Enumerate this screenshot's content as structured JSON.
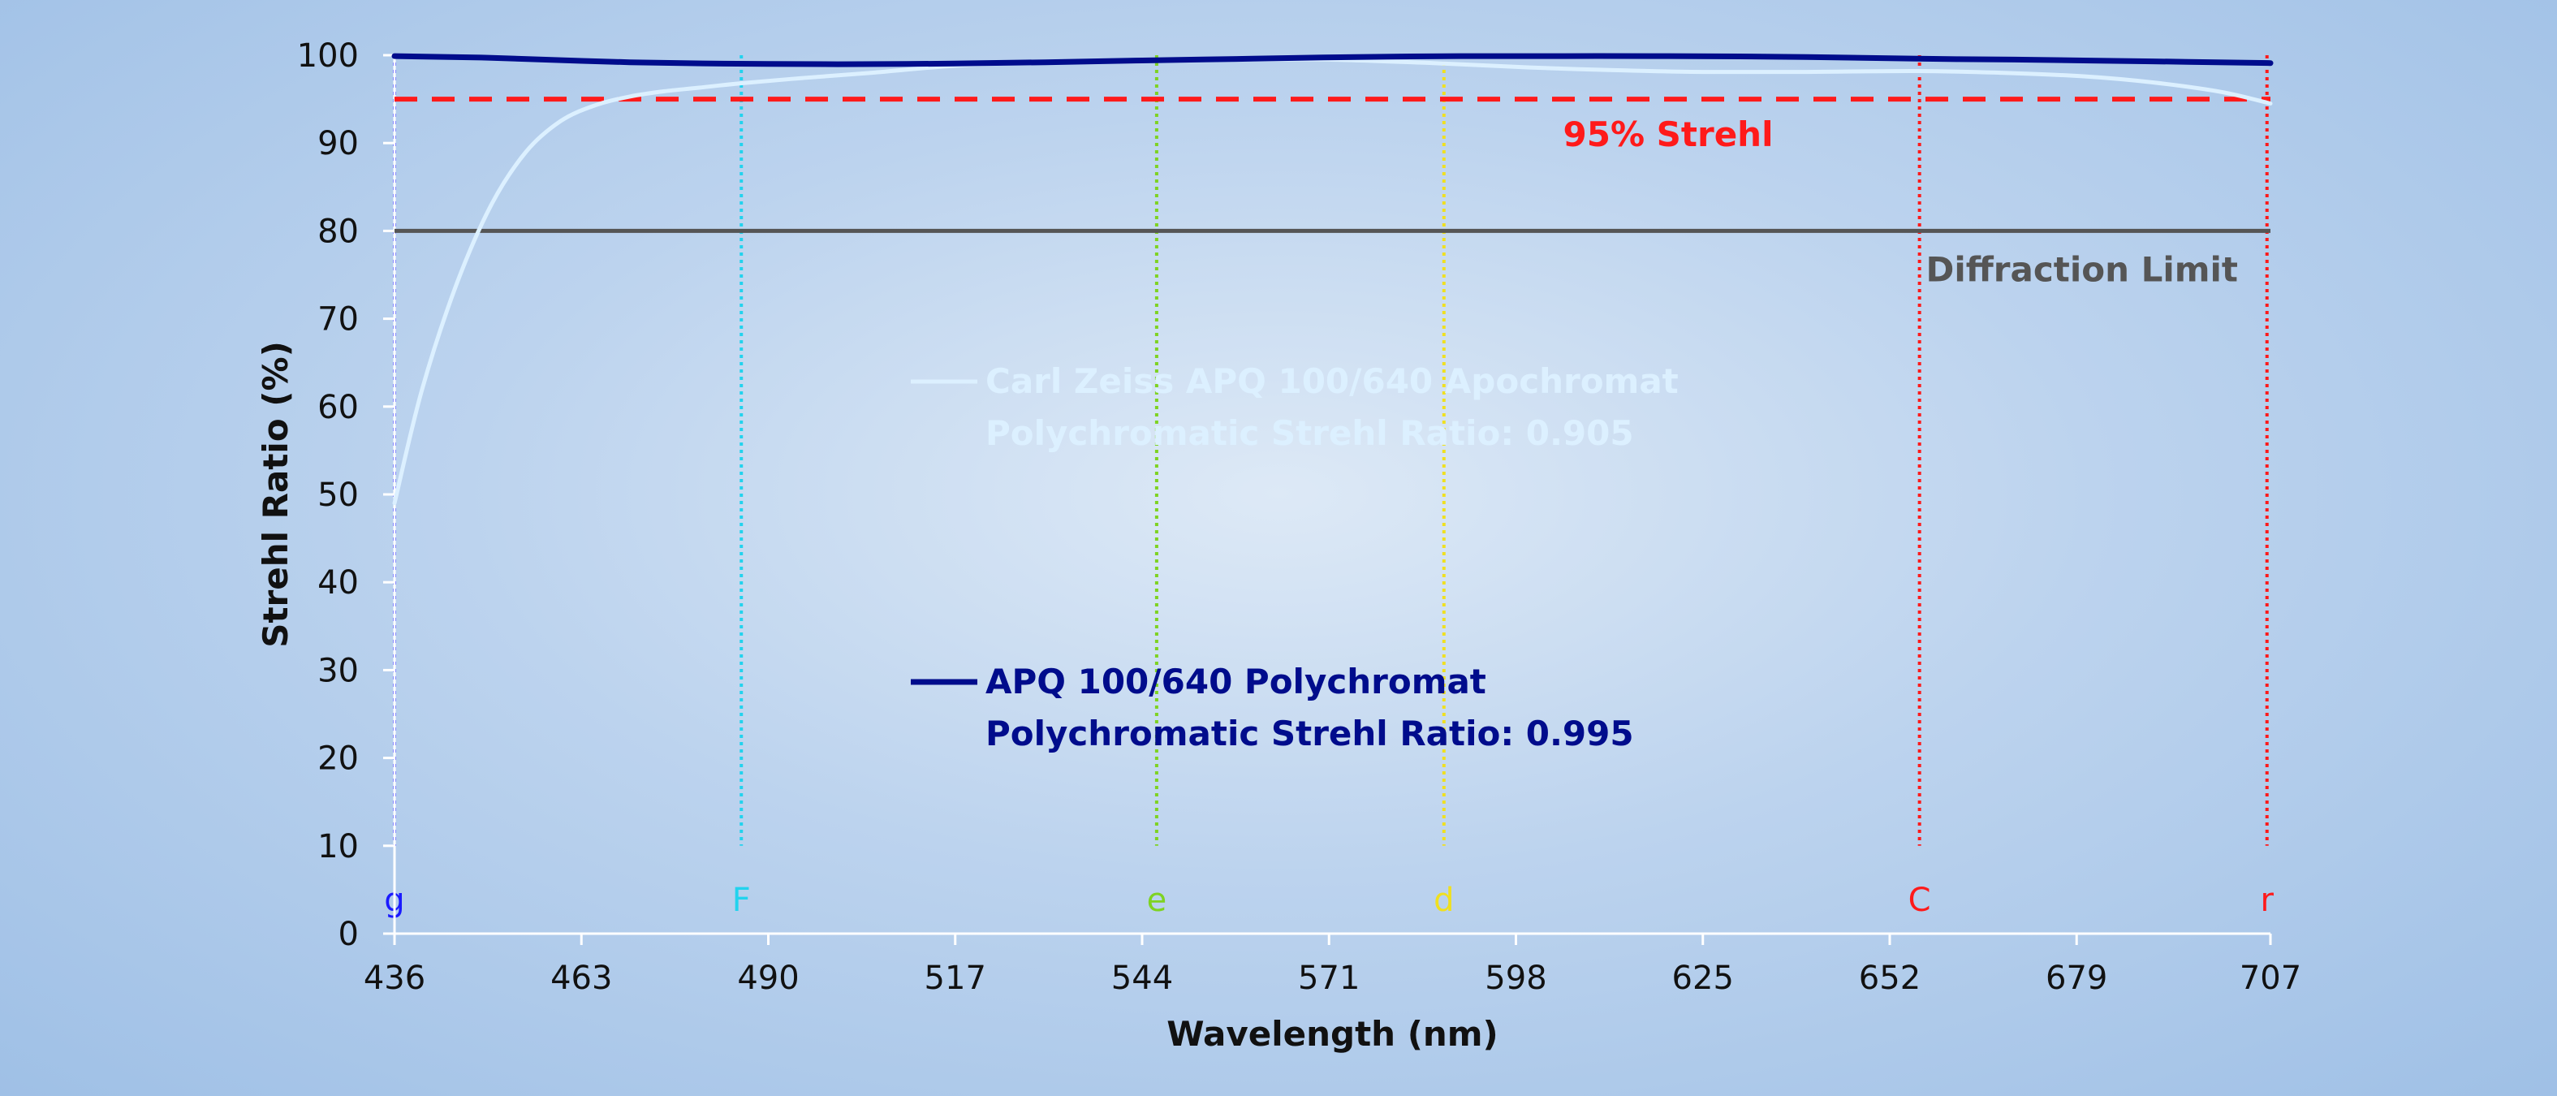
{
  "chart_data": {
    "type": "line",
    "xlabel": "Wavelength (nm)",
    "ylabel": "Strehl Ratio (%)",
    "xlim": [
      436,
      707
    ],
    "ylim": [
      0,
      100
    ],
    "x_ticks": [
      436,
      463,
      490,
      517,
      544,
      571,
      598,
      625,
      652,
      679,
      707
    ],
    "y_ticks": [
      0,
      10,
      20,
      30,
      40,
      50,
      60,
      70,
      80,
      90,
      100
    ],
    "grid": false,
    "series": [
      {
        "name_lines": [
          "Carl Zeiss APQ 100/640 Apochromat",
          "Polychromatic Strehl Ratio: 0.905"
        ],
        "color": "#dcf0ff",
        "x": [
          436,
          440,
          445,
          450,
          455,
          460,
          465,
          470,
          475,
          480,
          486,
          495,
          505,
          517,
          530,
          544,
          560,
          571,
          586,
          600,
          612,
          625,
          640,
          656,
          668,
          680,
          690,
          700,
          707
        ],
        "y": [
          49,
          62,
          74,
          83,
          89,
          92.5,
          94.3,
          95.3,
          95.9,
          96.3,
          96.8,
          97.4,
          98.0,
          98.8,
          99.2,
          99.4,
          99.5,
          99.5,
          99.1,
          98.6,
          98.3,
          98.1,
          98.1,
          98.2,
          98.0,
          97.6,
          96.9,
          95.8,
          94.5
        ]
      },
      {
        "name_lines": [
          "APQ 100/640 Polychromat",
          "Polychromatic Strehl Ratio: 0.995"
        ],
        "color": "#000c8c",
        "x": [
          436,
          450,
          470,
          490,
          510,
          530,
          544,
          560,
          575,
          590,
          605,
          620,
          640,
          656,
          670,
          690,
          707
        ],
        "y": [
          99.9,
          99.7,
          99.2,
          99.0,
          99.0,
          99.2,
          99.4,
          99.6,
          99.8,
          99.9,
          99.9,
          99.9,
          99.8,
          99.6,
          99.5,
          99.3,
          99.1
        ]
      }
    ],
    "reference_lines": [
      {
        "label": "95% Strehl",
        "y": 95,
        "color": "#ff1a1a",
        "style": "dashed"
      },
      {
        "label": "Diffraction Limit",
        "y": 80,
        "color": "#555555",
        "style": "solid"
      }
    ],
    "wavelength_markers": [
      {
        "label": "g",
        "x": 436,
        "color": "#1a1aff"
      },
      {
        "label": "F",
        "x": 486.1,
        "color": "#22d3ee"
      },
      {
        "label": "e",
        "x": 546.1,
        "color": "#7ed321"
      },
      {
        "label": "d",
        "x": 587.6,
        "color": "#f0e020"
      },
      {
        "label": "C",
        "x": 656.3,
        "color": "#ff1a1a"
      },
      {
        "label": "r",
        "x": 706.5,
        "color": "#ff1a1a"
      }
    ]
  }
}
